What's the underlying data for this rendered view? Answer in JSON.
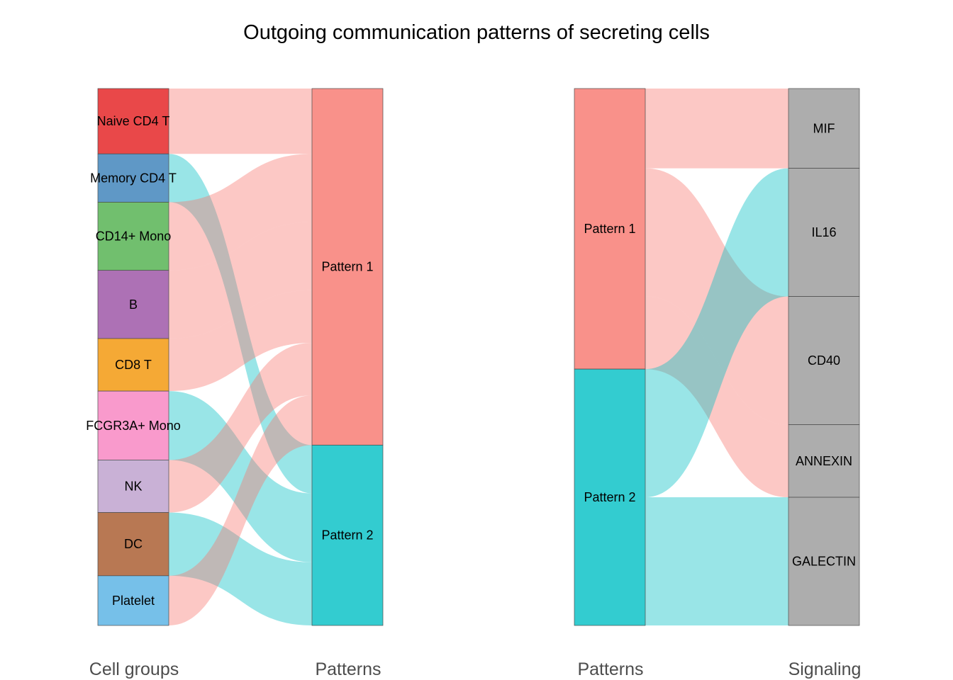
{
  "chart_data": {
    "type": "sankey",
    "title": "Outgoing communication patterns of secreting cells",
    "colors": {
      "pattern_1": "#F8766D",
      "pattern_2": "#00BFC4",
      "signaling_node": "#999999",
      "node_border": "#4d4d4d",
      "cell_groups": {
        "Naive CD4 T": "#E41A1C",
        "Memory CD4 T": "#377EB8",
        "CD14+ Mono": "#4DAF4A",
        "B": "#984EA3",
        "CD8 T": "#F29403",
        "FCGR3A+ Mono": "#F781BF",
        "NK": "#BC9DCC",
        "DC": "#A65628",
        "Platelet": "#54B0E4"
      }
    },
    "panels": [
      {
        "left_axis_label": "Cell groups",
        "right_axis_label": "Patterns",
        "left_nodes": [
          "Naive CD4 T",
          "Memory CD4 T",
          "CD14+ Mono",
          "B",
          "CD8 T",
          "FCGR3A+ Mono",
          "NK",
          "DC",
          "Platelet"
        ],
        "right_nodes": [
          "Pattern 1",
          "Pattern 2"
        ],
        "flows": [
          {
            "source": "Naive CD4 T",
            "target": "Pattern 1",
            "value": 0.92
          },
          {
            "source": "Memory CD4 T",
            "target": "Pattern 2",
            "value": 0.68
          },
          {
            "source": "CD14+ Mono",
            "target": "Pattern 1",
            "value": 0.96
          },
          {
            "source": "B",
            "target": "Pattern 1",
            "value": 0.96
          },
          {
            "source": "CD8 T",
            "target": "Pattern 1",
            "value": 0.74
          },
          {
            "source": "FCGR3A+ Mono",
            "target": "Pattern 2",
            "value": 0.97
          },
          {
            "source": "NK",
            "target": "Pattern 1",
            "value": 0.74
          },
          {
            "source": "DC",
            "target": "Pattern 2",
            "value": 0.89
          },
          {
            "source": "Platelet",
            "target": "Pattern 1",
            "value": 0.7
          }
        ]
      },
      {
        "left_axis_label": "Patterns",
        "right_axis_label": "Signaling",
        "left_nodes": [
          "Pattern 1",
          "Pattern 2"
        ],
        "right_nodes": [
          "MIF",
          "IL16",
          "CD40",
          "ANNEXIN",
          "GALECTIN"
        ],
        "flows": [
          {
            "source": "Pattern 1",
            "target": "MIF",
            "value": 1.12
          },
          {
            "source": "Pattern 1",
            "target": "CD40",
            "value": 1.8
          },
          {
            "source": "Pattern 1",
            "target": "ANNEXIN",
            "value": 1.02
          },
          {
            "source": "Pattern 2",
            "target": "IL16",
            "value": 1.8
          },
          {
            "source": "Pattern 2",
            "target": "GALECTIN",
            "value": 1.8
          }
        ]
      }
    ]
  }
}
